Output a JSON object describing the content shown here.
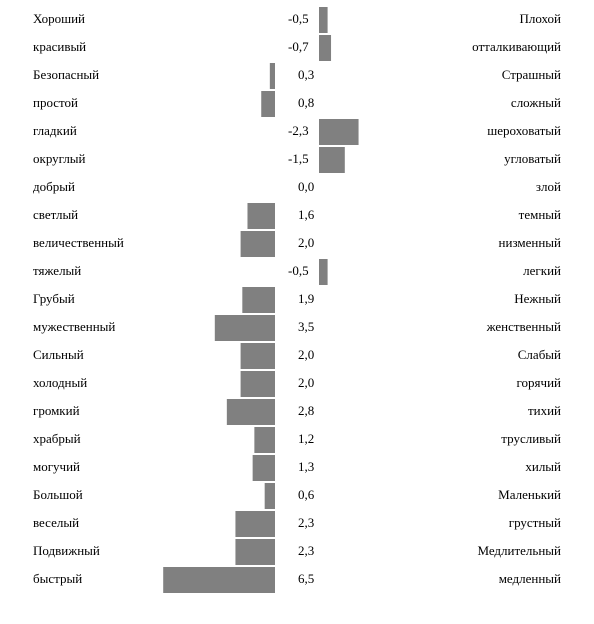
{
  "chart_data": {
    "type": "bar",
    "color": "#808080",
    "categories": [
      "Хороший",
      "красивый",
      "Безопасный",
      "простой",
      "гладкий",
      "округлый",
      "добрый",
      "светлый",
      "величественный",
      "тяжелый",
      "Грубый",
      "мужественный",
      "Сильный",
      "холодный",
      "громкий",
      "храбрый",
      "могучий",
      "Большой",
      "веселый",
      "Подвижный",
      "быстрый"
    ],
    "categories_right": [
      "Плохой",
      "отталкивающий",
      "Страшный",
      "сложный",
      "шероховатый",
      "угловатый",
      "злой",
      "темный",
      "низменный",
      "легкий",
      "Нежный",
      "женственный",
      "Слабый",
      "горячий",
      "тихий",
      "трусливый",
      "хилый",
      "Маленький",
      "грустный",
      "Медлительный",
      "медленный"
    ],
    "values": [
      -0.5,
      -0.7,
      0.3,
      0.8,
      -2.3,
      -1.5,
      0.0,
      1.6,
      2.0,
      -0.5,
      1.9,
      3.5,
      2.0,
      2.0,
      2.8,
      1.2,
      1.3,
      0.6,
      2.3,
      2.3,
      6.5
    ],
    "value_labels": [
      "-0,5",
      "-0,7",
      "0,3",
      "0,8",
      "-2,3",
      "-1,5",
      "0,0",
      "1,6",
      "2,0",
      "-0,5",
      "1,9",
      "3,5",
      "2,0",
      "2,0",
      "2,8",
      "1,2",
      "1,3",
      "0,6",
      "2,3",
      "2,3",
      "6,5"
    ]
  }
}
